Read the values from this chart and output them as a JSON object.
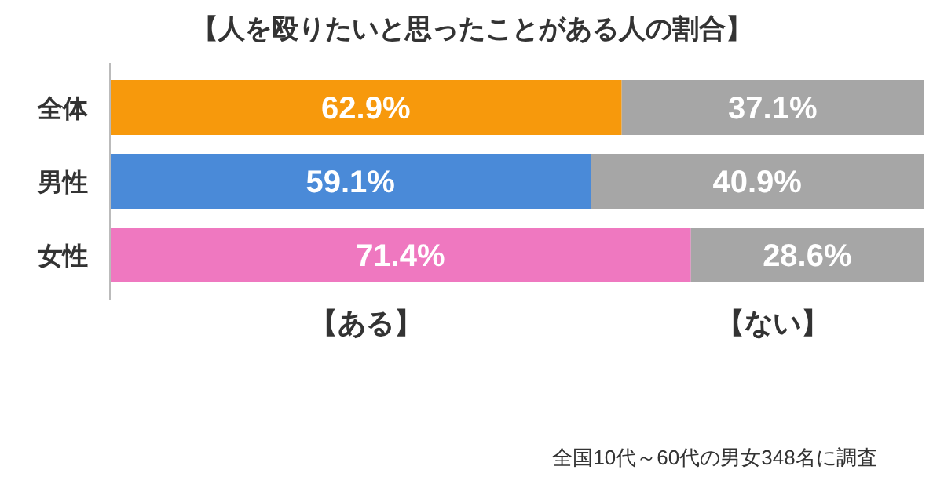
{
  "chart_data": {
    "type": "bar",
    "orientation": "horizontal",
    "stacked": true,
    "title": "【人を殴りたいと思ったことがある人の割合】",
    "categories": [
      "全体",
      "男性",
      "女性"
    ],
    "xlim": [
      0,
      100
    ],
    "series": [
      {
        "name": "【ある】",
        "colors": [
          "#f7990c",
          "#4a8ad8",
          "#ef78c0"
        ],
        "values": [
          62.9,
          59.1,
          71.4
        ],
        "value_labels": [
          "62.9%",
          "59.1%",
          "71.4%"
        ]
      },
      {
        "name": "【ない】",
        "color": "#a6a6a6",
        "values": [
          37.1,
          40.9,
          28.6
        ],
        "value_labels": [
          "37.1%",
          "40.9%",
          "28.6%"
        ]
      }
    ],
    "legend": "bottom",
    "annotations": [
      "全国10代～60代の男女348名に調査"
    ]
  }
}
